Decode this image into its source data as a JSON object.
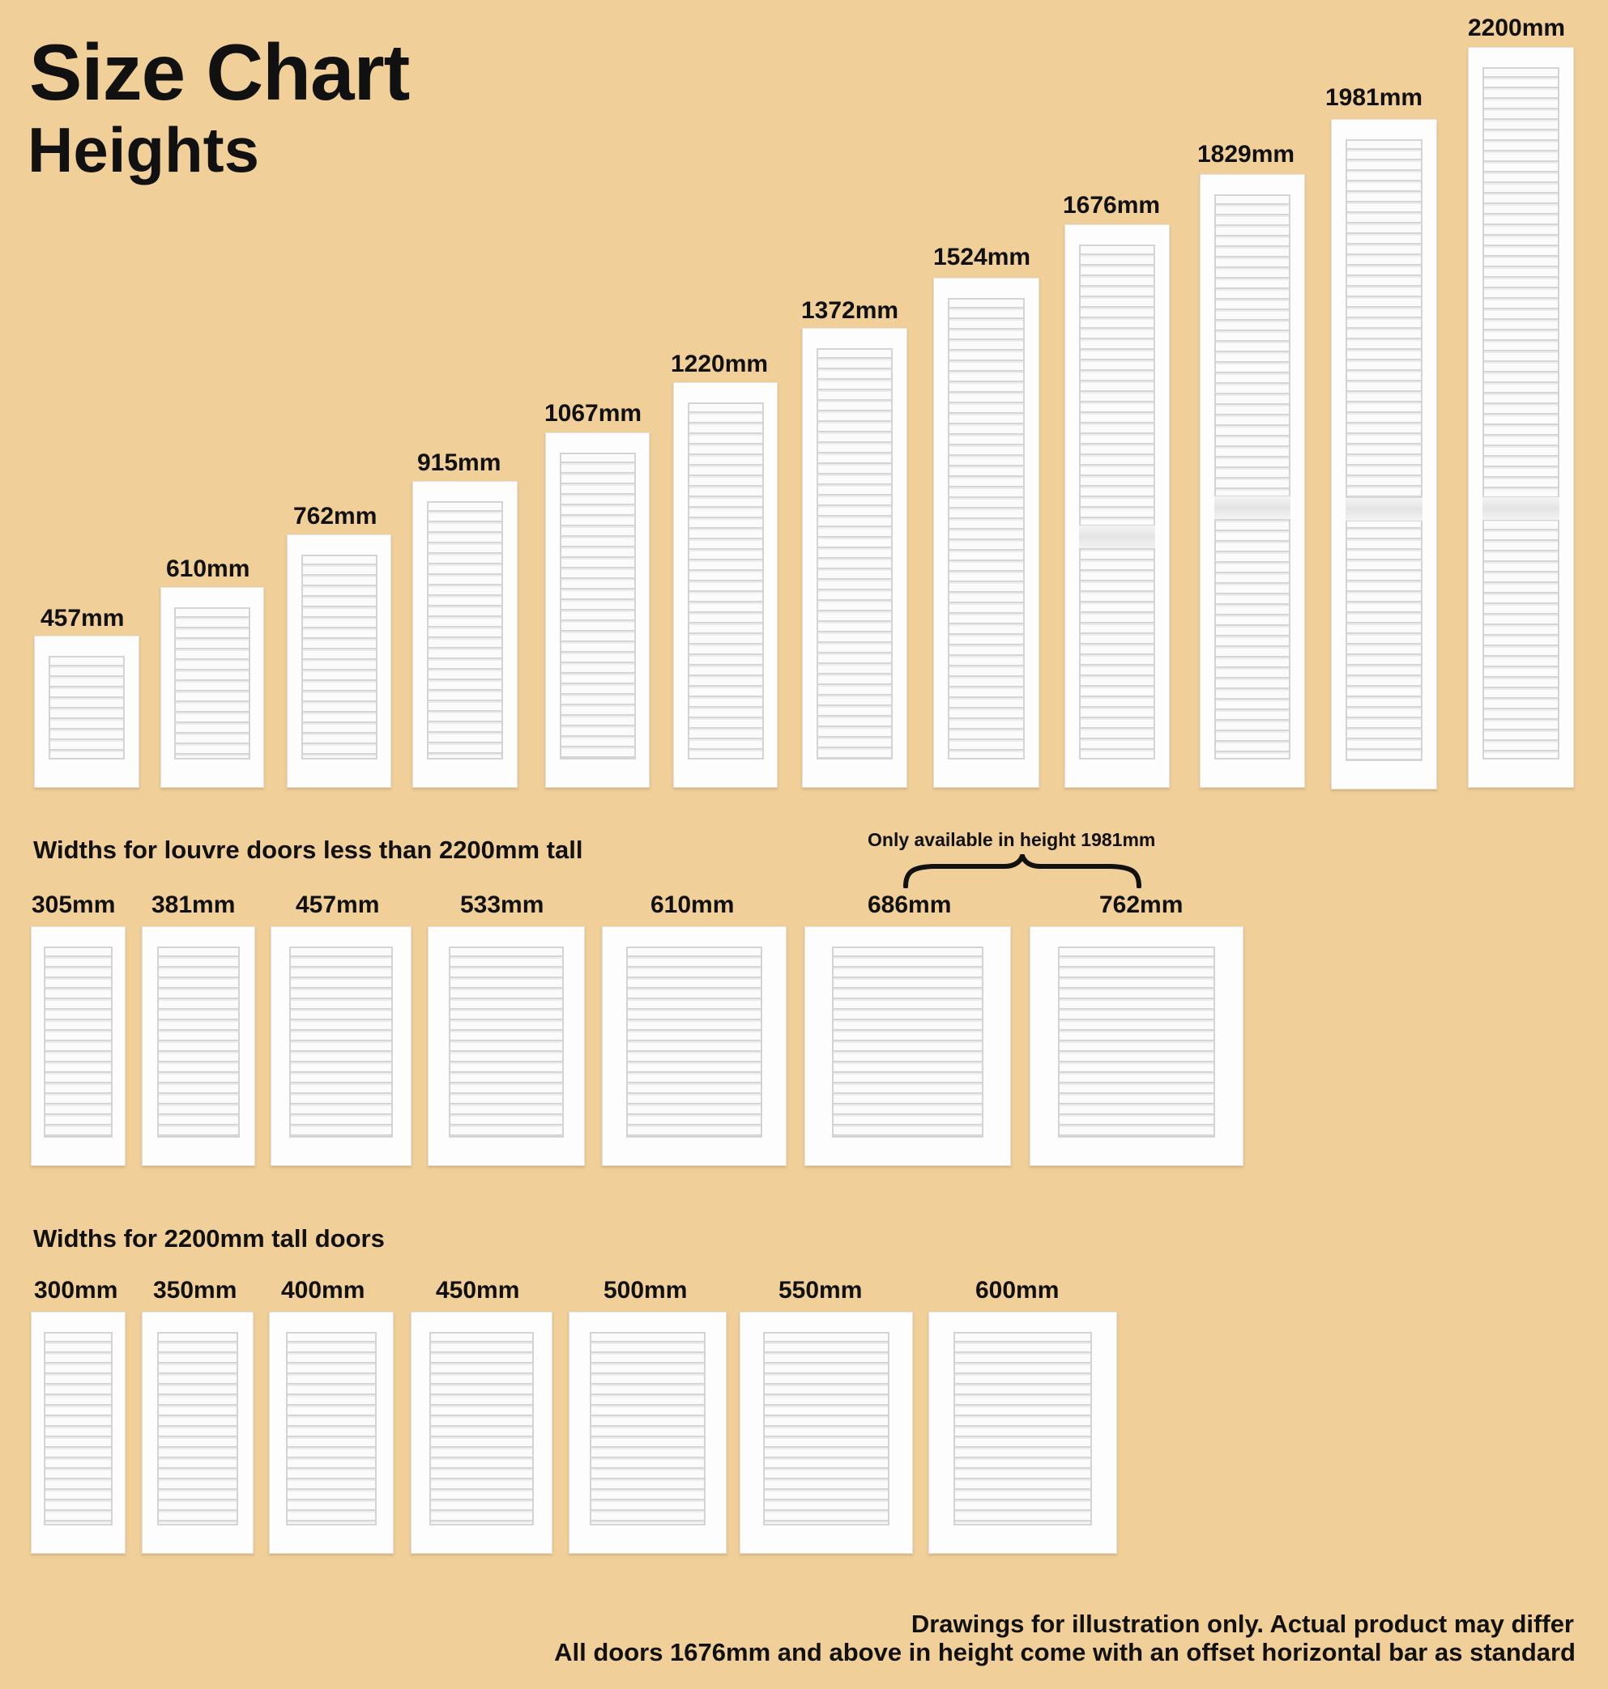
{
  "title": "Size Chart",
  "subtitle": "Heights",
  "heights": [
    "457mm",
    "610mm",
    "762mm",
    "915mm",
    "1067mm",
    "1220mm",
    "1372mm",
    "1524mm",
    "1676mm",
    "1829mm",
    "1981mm",
    "2200mm"
  ],
  "widths_standard": {
    "heading": "Widths for louvre doors less than 2200mm tall",
    "sizes": [
      "305mm",
      "381mm",
      "457mm",
      "533mm",
      "610mm",
      "686mm",
      "762mm"
    ],
    "note": "Only available in height 1981mm"
  },
  "widths_tall": {
    "heading": "Widths for 2200mm tall doors",
    "sizes": [
      "300mm",
      "350mm",
      "400mm",
      "450mm",
      "500mm",
      "550mm",
      "600mm"
    ]
  },
  "footer": {
    "line1": "Drawings for illustration only. Actual product may differ",
    "line2": "All doors 1676mm and above in height come with an offset horizontal bar as standard"
  }
}
